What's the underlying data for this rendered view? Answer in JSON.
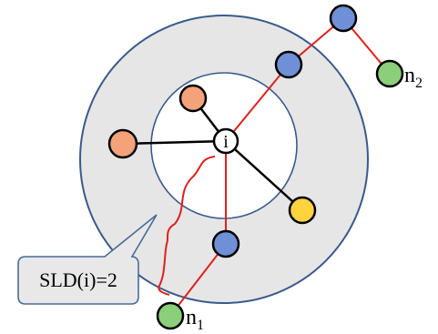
{
  "labels": {
    "center_node": "i",
    "callout_text": "SLD(i)=2",
    "node_n1_base": "n",
    "node_n1_sub": "1",
    "node_n2_base": "n",
    "node_n2_sub": "2"
  },
  "colors": {
    "outer_ring_fill": "#e6e6e6",
    "outer_ring_stroke": "#3a5a8c",
    "inner_circle_fill": "#ffffff",
    "inner_circle_stroke": "#3a5a8c",
    "blue_node": "#6f8fd6",
    "orange_node": "#f4a27a",
    "yellow_node": "#ffd23f",
    "green_node": "#8ccf7a",
    "center_node_fill": "#ffffff",
    "red_edge": "#e0201c",
    "black_edge": "#000000",
    "callout_fill": "#e8e8e8",
    "callout_stroke": "#4a6a9a"
  }
}
